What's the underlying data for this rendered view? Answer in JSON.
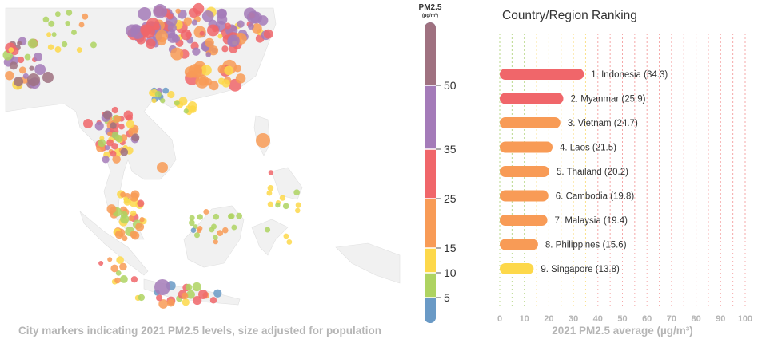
{
  "map": {
    "caption": "City markers indicating 2021 PM2.5 levels, size adjusted for population"
  },
  "legend": {
    "title": "PM2.5",
    "unit": "(µg/m³)",
    "ticks": [
      "5",
      "10",
      "15",
      "25",
      "35",
      "50"
    ],
    "bands": [
      {
        "from": 0,
        "to": 5,
        "color": "#6a9ac6"
      },
      {
        "from": 5,
        "to": 10,
        "color": "#aed361"
      },
      {
        "from": 10,
        "to": 15,
        "color": "#fdd84a"
      },
      {
        "from": 15,
        "to": 25,
        "color": "#f89b56"
      },
      {
        "from": 25,
        "to": 35,
        "color": "#f0666a"
      },
      {
        "from": 35,
        "to": 50,
        "color": "#a47bb9"
      },
      {
        "from": 50,
        "to": null,
        "color": "#9f7180"
      }
    ]
  },
  "chart_data": {
    "type": "bar",
    "orientation": "horizontal",
    "title": "Country/Region Ranking",
    "xlabel": "2021 PM2.5 average (µg/m³)",
    "xlim": [
      0,
      100
    ],
    "xticks": [
      "0",
      "10",
      "20",
      "30",
      "40",
      "50",
      "60",
      "70",
      "80",
      "90",
      "100"
    ],
    "grid": "dashed vertical lines every 5, colored by PM2.5 band",
    "categories": [
      "Indonesia",
      "Myanmar",
      "Vietnam",
      "Laos",
      "Thailand",
      "Cambodia",
      "Malaysia",
      "Philippines",
      "Singapore"
    ],
    "values": [
      34.3,
      25.9,
      24.7,
      21.5,
      20.2,
      19.8,
      19.4,
      15.6,
      13.8
    ],
    "labels": [
      "1. Indonesia (34.3)",
      "2. Myanmar (25.9)",
      "3. Vietnam (24.7)",
      "4. Laos (21.5)",
      "5. Thailand (20.2)",
      "6. Cambodia (19.8)",
      "7. Malaysia (19.4)",
      "8. Philippines (15.6)",
      "9. Singapore (13.8)"
    ]
  }
}
